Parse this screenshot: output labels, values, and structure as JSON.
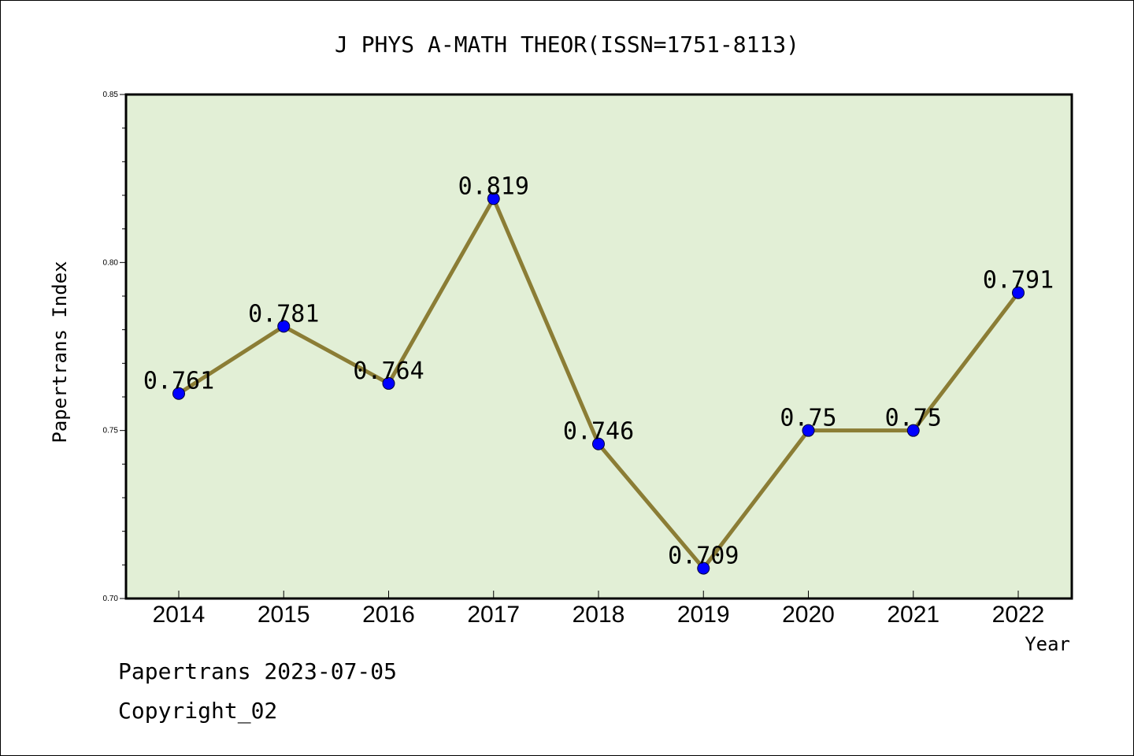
{
  "chart_data": {
    "type": "line",
    "title": "J PHYS A-MATH THEOR(ISSN=1751-8113)",
    "xlabel": "Year",
    "ylabel": "Papertrans Index",
    "categories": [
      "2014",
      "2015",
      "2016",
      "2017",
      "2018",
      "2019",
      "2020",
      "2021",
      "2022"
    ],
    "values": [
      0.761,
      0.781,
      0.764,
      0.819,
      0.746,
      0.709,
      0.75,
      0.75,
      0.791
    ],
    "data_labels": [
      "0.761",
      "0.781",
      "0.764",
      "0.819",
      "0.746",
      "0.709",
      "0.75",
      "0.75",
      "0.791"
    ],
    "ylim": [
      0.7,
      0.85
    ],
    "yticks": [
      0.7,
      0.75,
      0.8,
      0.85
    ],
    "ytick_labels": [
      "0.70",
      "0.75",
      "0.80",
      "0.85"
    ],
    "grid": false,
    "colors": {
      "plot_background": "#e2efd6",
      "line": "#8b7d35",
      "marker": "#0000ff"
    }
  },
  "footer": {
    "line1": "Papertrans 2023-07-05",
    "line2": "Copyright_02"
  }
}
